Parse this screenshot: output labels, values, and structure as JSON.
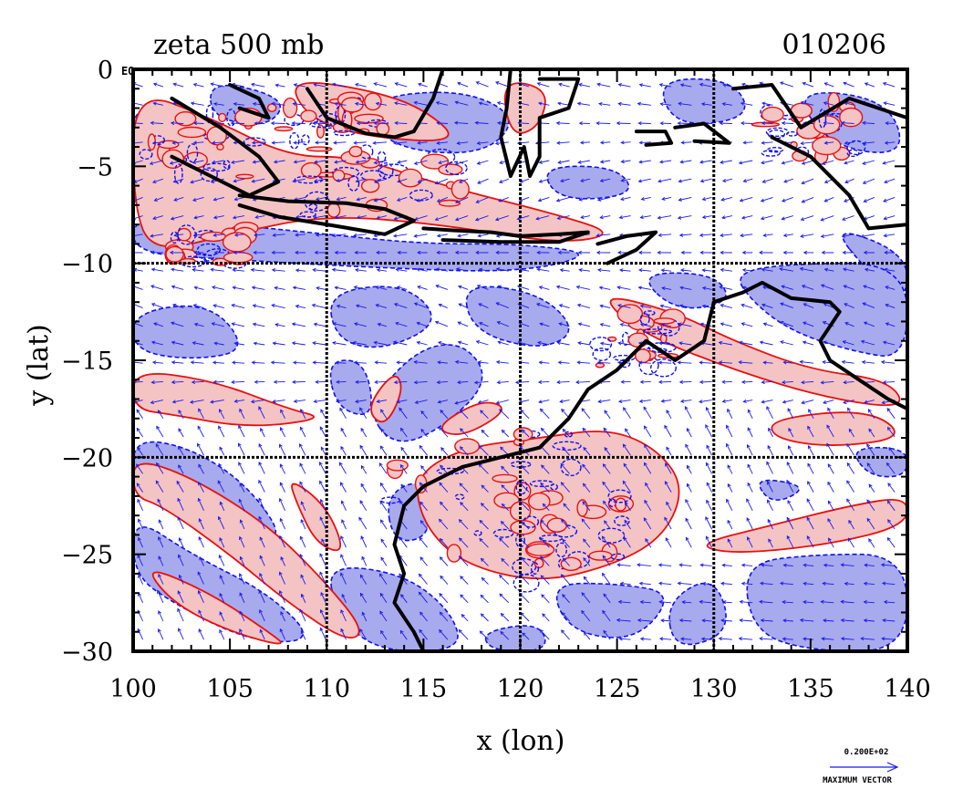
{
  "title_left": "zeta 500 mb",
  "title_right": "010206",
  "xlabel": "x (lon)",
  "ylabel": "y (lat)",
  "eq_marker": "EQ",
  "legend": {
    "value": "0.200E+02",
    "label": "MAXIMUM VECTOR"
  },
  "axes": {
    "xlim": [
      100,
      140
    ],
    "ylim": [
      -30,
      0
    ],
    "xticks": [
      "100",
      "105",
      "110",
      "115",
      "120",
      "125",
      "130",
      "135",
      "140"
    ],
    "yticks": [
      "0",
      "−5",
      "−10",
      "−15",
      "−20",
      "−25",
      "−30"
    ],
    "grid_lon": [
      110,
      120,
      130
    ],
    "grid_lat": [
      -10,
      -20
    ]
  },
  "colors": {
    "positive_fill": "#f4c4c4",
    "positive_line": "#e81010",
    "negative_fill": "#a8aaee",
    "negative_line": "#1010ee",
    "vector": "#1a1aee",
    "coast": "#000000"
  },
  "chart_data": {
    "type": "map",
    "field": "relative vorticity (zeta) at 500 mb",
    "date": "010206",
    "lon_range": [
      100,
      140
    ],
    "lat_range": [
      -30,
      0
    ],
    "contours": "red = positive, blue dashed = negative",
    "vectors": "wind vectors",
    "positive_regions": [
      [
        [
          100.0,
          -1.0
        ],
        [
          104.0,
          -2.5
        ],
        [
          108.0,
          -4.5
        ],
        [
          111.5,
          -4.5
        ],
        [
          116.0,
          -6.0
        ],
        [
          122.0,
          -7.5
        ],
        [
          125.0,
          -8.5
        ],
        [
          122.0,
          -9.0
        ],
        [
          116.0,
          -8.0
        ],
        [
          110.0,
          -7.5
        ],
        [
          105.0,
          -8.5
        ],
        [
          101.0,
          -9.5
        ],
        [
          100.0,
          -7.0
        ]
      ],
      [
        [
          108.0,
          -0.5
        ],
        [
          112.0,
          -1.0
        ],
        [
          115.0,
          -2.0
        ],
        [
          117.0,
          -3.8
        ],
        [
          112.0,
          -3.5
        ],
        [
          109.0,
          -2.5
        ]
      ],
      [
        [
          119.0,
          -0.5
        ],
        [
          121.5,
          -1.0
        ],
        [
          121.0,
          -3.0
        ],
        [
          119.5,
          -3.5
        ]
      ],
      [
        [
          124.0,
          -11.5
        ],
        [
          128.0,
          -12.5
        ],
        [
          131.0,
          -14.0
        ],
        [
          135.0,
          -15.5
        ],
        [
          139.0,
          -16.0
        ],
        [
          140.0,
          -17.5
        ],
        [
          136.0,
          -17.0
        ],
        [
          131.0,
          -15.5
        ],
        [
          126.0,
          -13.5
        ]
      ],
      [
        [
          133.0,
          -18.0
        ],
        [
          138.0,
          -17.5
        ],
        [
          140.0,
          -19.0
        ],
        [
          136.0,
          -19.5
        ],
        [
          133.0,
          -19.0
        ]
      ],
      [
        [
          114.5,
          -21.0
        ],
        [
          117.0,
          -19.5
        ],
        [
          121.0,
          -19.0
        ],
        [
          124.5,
          -18.5
        ],
        [
          127.0,
          -19.5
        ],
        [
          128.5,
          -21.5
        ],
        [
          127.5,
          -24.0
        ],
        [
          125.0,
          -25.5
        ],
        [
          121.0,
          -26.5
        ],
        [
          117.0,
          -25.5
        ],
        [
          115.0,
          -23.5
        ]
      ],
      [
        [
          129.0,
          -24.5
        ],
        [
          133.0,
          -23.5
        ],
        [
          137.0,
          -22.5
        ],
        [
          140.0,
          -22.0
        ],
        [
          140.0,
          -23.5
        ],
        [
          136.0,
          -24.5
        ],
        [
          131.0,
          -25.0
        ]
      ],
      [
        [
          100.0,
          -15.5
        ],
        [
          104.0,
          -16.0
        ],
        [
          108.0,
          -17.5
        ],
        [
          110.0,
          -18.0
        ],
        [
          106.0,
          -18.5
        ],
        [
          102.0,
          -17.8
        ],
        [
          100.0,
          -17.5
        ]
      ],
      [
        [
          112.0,
          -17.5
        ],
        [
          113.5,
          -15.5
        ],
        [
          114.0,
          -16.5
        ],
        [
          113.0,
          -18.5
        ]
      ],
      [
        [
          115.5,
          -18.5
        ],
        [
          118.0,
          -17.0
        ],
        [
          119.5,
          -17.5
        ],
        [
          117.0,
          -19.0
        ]
      ],
      [
        [
          100.0,
          -20.0
        ],
        [
          103.0,
          -21.0
        ],
        [
          107.0,
          -23.5
        ],
        [
          110.0,
          -26.5
        ],
        [
          112.0,
          -29.0
        ],
        [
          111.0,
          -29.5
        ],
        [
          108.0,
          -27.5
        ],
        [
          105.0,
          -25.0
        ],
        [
          101.5,
          -22.5
        ],
        [
          100.0,
          -22.0
        ]
      ],
      [
        [
          100.5,
          -25.5
        ],
        [
          104.0,
          -27.0
        ],
        [
          107.0,
          -29.0
        ],
        [
          108.0,
          -29.8
        ],
        [
          105.0,
          -29.0
        ],
        [
          102.0,
          -27.5
        ]
      ],
      [
        [
          108.0,
          -21.0
        ],
        [
          110.0,
          -22.5
        ],
        [
          111.0,
          -25.0
        ],
        [
          109.5,
          -24.5
        ],
        [
          108.5,
          -22.5
        ]
      ]
    ],
    "negative_regions": [
      [
        [
          100.0,
          -1.5
        ],
        [
          103.0,
          -3.5
        ],
        [
          100.0,
          -5.0
        ]
      ],
      [
        [
          104.0,
          -0.5
        ],
        [
          108.0,
          -1.5
        ],
        [
          107.0,
          -3.0
        ],
        [
          104.0,
          -2.5
        ]
      ],
      [
        [
          112.0,
          -1.5
        ],
        [
          117.0,
          -1.0
        ],
        [
          120.0,
          -2.5
        ],
        [
          118.0,
          -4.5
        ],
        [
          113.0,
          -4.0
        ]
      ],
      [
        [
          127.0,
          -0.5
        ],
        [
          131.0,
          -0.5
        ],
        [
          132.0,
          -2.5
        ],
        [
          128.0,
          -3.0
        ]
      ],
      [
        [
          134.0,
          -1.0
        ],
        [
          139.0,
          -1.5
        ],
        [
          140.0,
          -4.5
        ],
        [
          136.0,
          -4.0
        ]
      ],
      [
        [
          121.0,
          -5.0
        ],
        [
          125.0,
          -5.0
        ],
        [
          126.0,
          -6.5
        ],
        [
          122.0,
          -6.8
        ]
      ],
      [
        [
          100.0,
          -7.5
        ],
        [
          105.0,
          -8.0
        ],
        [
          110.0,
          -8.5
        ],
        [
          115.0,
          -9.0
        ],
        [
          120.0,
          -9.0
        ],
        [
          124.0,
          -9.5
        ],
        [
          120.0,
          -10.5
        ],
        [
          112.0,
          -10.2
        ],
        [
          105.0,
          -9.8
        ],
        [
          100.0,
          -9.5
        ]
      ],
      [
        [
          136.0,
          -8.0
        ],
        [
          140.0,
          -9.5
        ],
        [
          140.0,
          -12.0
        ],
        [
          138.0,
          -10.5
        ]
      ],
      [
        [
          100.0,
          -12.5
        ],
        [
          104.0,
          -12.0
        ],
        [
          106.0,
          -14.5
        ],
        [
          103.0,
          -15.0
        ],
        [
          100.0,
          -14.5
        ]
      ],
      [
        [
          110.0,
          -11.5
        ],
        [
          114.0,
          -11.0
        ],
        [
          116.0,
          -13.0
        ],
        [
          113.0,
          -14.5
        ],
        [
          110.5,
          -14.0
        ]
      ],
      [
        [
          110.0,
          -15.0
        ],
        [
          112.0,
          -15.0
        ],
        [
          112.5,
          -18.0
        ],
        [
          110.5,
          -17.5
        ]
      ],
      [
        [
          112.0,
          -17.5
        ],
        [
          114.5,
          -14.5
        ],
        [
          117.0,
          -14.0
        ],
        [
          118.5,
          -16.0
        ],
        [
          116.0,
          -18.5
        ],
        [
          113.5,
          -19.5
        ]
      ],
      [
        [
          117.0,
          -11.0
        ],
        [
          121.0,
          -11.5
        ],
        [
          123.0,
          -13.5
        ],
        [
          121.0,
          -14.5
        ],
        [
          117.5,
          -13.5
        ]
      ],
      [
        [
          126.0,
          -10.5
        ],
        [
          130.0,
          -10.5
        ],
        [
          131.0,
          -12.0
        ],
        [
          128.0,
          -12.5
        ]
      ],
      [
        [
          131.0,
          -10.5
        ],
        [
          134.0,
          -10.0
        ],
        [
          140.0,
          -10.0
        ],
        [
          140.0,
          -15.0
        ],
        [
          137.0,
          -14.5
        ],
        [
          134.0,
          -13.5
        ],
        [
          132.0,
          -12.0
        ]
      ],
      [
        [
          100.0,
          -19.0
        ],
        [
          103.0,
          -19.5
        ],
        [
          106.0,
          -21.5
        ],
        [
          108.0,
          -24.5
        ],
        [
          104.5,
          -23.5
        ],
        [
          101.5,
          -21.5
        ],
        [
          100.0,
          -21.5
        ]
      ],
      [
        [
          100.0,
          -23.0
        ],
        [
          103.0,
          -25.0
        ],
        [
          107.0,
          -27.0
        ],
        [
          109.5,
          -29.5
        ],
        [
          106.0,
          -29.5
        ],
        [
          102.0,
          -27.5
        ],
        [
          100.0,
          -26.0
        ]
      ],
      [
        [
          110.0,
          -25.5
        ],
        [
          114.0,
          -26.0
        ],
        [
          116.5,
          -28.0
        ],
        [
          117.0,
          -30.0
        ],
        [
          112.5,
          -30.0
        ],
        [
          110.5,
          -28.0
        ]
      ],
      [
        [
          113.0,
          -22.0
        ],
        [
          115.0,
          -21.0
        ],
        [
          115.5,
          -24.0
        ],
        [
          113.5,
          -24.5
        ]
      ],
      [
        [
          121.5,
          -26.5
        ],
        [
          125.0,
          -26.5
        ],
        [
          128.0,
          -27.0
        ],
        [
          126.0,
          -29.5
        ],
        [
          122.5,
          -29.0
        ]
      ],
      [
        [
          118.0,
          -29.0
        ],
        [
          121.0,
          -28.5
        ],
        [
          121.5,
          -30.0
        ],
        [
          118.5,
          -30.0
        ]
      ],
      [
        [
          127.5,
          -27.5
        ],
        [
          130.0,
          -26.0
        ],
        [
          131.0,
          -29.0
        ],
        [
          128.0,
          -30.0
        ]
      ],
      [
        [
          131.5,
          -25.5
        ],
        [
          135.0,
          -25.0
        ],
        [
          140.0,
          -25.0
        ],
        [
          140.0,
          -30.0
        ],
        [
          135.0,
          -30.0
        ],
        [
          132.0,
          -29.0
        ]
      ],
      [
        [
          132.0,
          -21.0
        ],
        [
          135.0,
          -21.5
        ],
        [
          133.0,
          -22.5
        ]
      ],
      [
        [
          137.0,
          -19.5
        ],
        [
          140.0,
          -19.5
        ],
        [
          140.0,
          -21.0
        ],
        [
          138.0,
          -21.0
        ]
      ]
    ],
    "coastlines": [
      [
        [
          102.0,
          -1.5
        ],
        [
          104.5,
          -3.0
        ],
        [
          106.5,
          -4.5
        ],
        [
          107.5,
          -5.8
        ],
        [
          106.0,
          -6.5
        ],
        [
          104.0,
          -5.5
        ],
        [
          102.0,
          -4.5
        ]
      ],
      [
        [
          105.5,
          -6.5
        ],
        [
          108.0,
          -6.8
        ],
        [
          111.0,
          -6.9
        ],
        [
          113.0,
          -7.2
        ],
        [
          114.5,
          -7.8
        ],
        [
          113.0,
          -8.5
        ],
        [
          110.0,
          -8.0
        ],
        [
          107.5,
          -7.6
        ],
        [
          105.5,
          -7.0
        ]
      ],
      [
        [
          115.0,
          -8.2
        ],
        [
          116.5,
          -8.3
        ],
        [
          118.5,
          -8.4
        ],
        [
          120.0,
          -8.6
        ],
        [
          122.0,
          -8.5
        ],
        [
          123.5,
          -8.4
        ],
        [
          122.0,
          -8.9
        ],
        [
          119.0,
          -8.9
        ],
        [
          116.0,
          -8.8
        ]
      ],
      [
        [
          124.0,
          -9.0
        ],
        [
          125.5,
          -8.6
        ],
        [
          127.0,
          -8.4
        ],
        [
          126.0,
          -9.3
        ],
        [
          124.5,
          -10.0
        ]
      ],
      [
        [
          105.0,
          -0.8
        ],
        [
          106.5,
          -1.5
        ],
        [
          107.0,
          -2.5
        ],
        [
          105.5,
          -2.0
        ]
      ],
      [
        [
          109.0,
          -1.0
        ],
        [
          110.0,
          -2.5
        ],
        [
          112.0,
          -3.3
        ],
        [
          113.5,
          -3.5
        ],
        [
          114.5,
          -3.2
        ],
        [
          115.5,
          -1.5
        ],
        [
          116.0,
          0.0
        ]
      ],
      [
        [
          119.5,
          0.0
        ],
        [
          119.3,
          -2.0
        ],
        [
          119.0,
          -3.5
        ],
        [
          119.5,
          -5.5
        ],
        [
          120.2,
          -4.0
        ],
        [
          120.5,
          -5.5
        ],
        [
          121.0,
          -4.5
        ],
        [
          121.0,
          -2.5
        ],
        [
          122.5,
          -2.0
        ],
        [
          123.0,
          -0.5
        ],
        [
          121.0,
          -0.5
        ]
      ],
      [
        [
          126.0,
          -3.2
        ],
        [
          127.5,
          -3.2
        ],
        [
          127.8,
          -3.8
        ],
        [
          126.5,
          -3.9
        ]
      ],
      [
        [
          128.0,
          -3.0
        ],
        [
          129.5,
          -2.8
        ],
        [
          130.8,
          -3.8
        ],
        [
          129.0,
          -3.7
        ]
      ],
      [
        [
          131.0,
          -1.0
        ],
        [
          133.0,
          -0.8
        ],
        [
          134.5,
          -3.0
        ],
        [
          137.0,
          -1.5
        ],
        [
          140.0,
          -2.5
        ],
        [
          140.0,
          -8.0
        ],
        [
          138.0,
          -8.2
        ],
        [
          137.0,
          -6.5
        ],
        [
          135.0,
          -4.5
        ],
        [
          133.0,
          -3.5
        ]
      ],
      [
        [
          130.0,
          -12.0
        ],
        [
          131.5,
          -11.5
        ],
        [
          132.5,
          -11.0
        ],
        [
          134.0,
          -11.8
        ],
        [
          136.0,
          -12.0
        ],
        [
          136.5,
          -12.5
        ],
        [
          135.5,
          -14.0
        ],
        [
          136.0,
          -15.0
        ],
        [
          137.5,
          -16.0
        ],
        [
          139.0,
          -17.0
        ],
        [
          140.0,
          -17.5
        ]
      ],
      [
        [
          130.0,
          -12.0
        ],
        [
          129.5,
          -14.0
        ],
        [
          128.0,
          -15.0
        ],
        [
          126.5,
          -14.0
        ],
        [
          125.0,
          -15.5
        ],
        [
          123.5,
          -16.5
        ],
        [
          122.5,
          -18.0
        ],
        [
          121.0,
          -19.5
        ],
        [
          119.0,
          -20.0
        ],
        [
          117.0,
          -20.5
        ],
        [
          115.0,
          -21.5
        ],
        [
          114.0,
          -22.5
        ],
        [
          113.5,
          -24.5
        ],
        [
          114.0,
          -26.0
        ],
        [
          113.5,
          -27.5
        ],
        [
          114.5,
          -29.0
        ],
        [
          115.0,
          -30.0
        ]
      ]
    ]
  }
}
